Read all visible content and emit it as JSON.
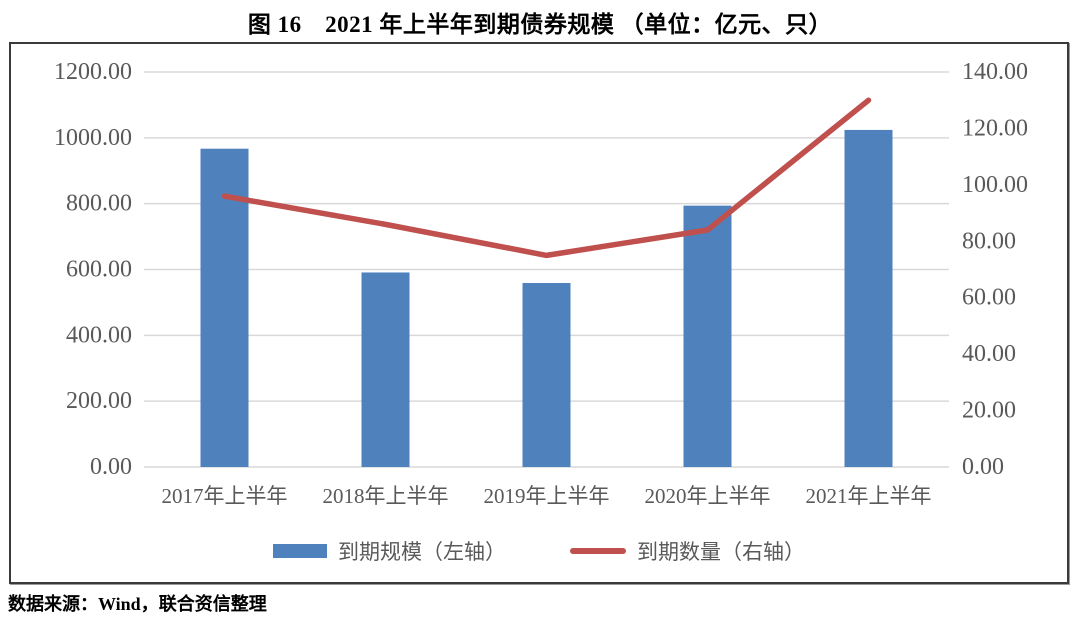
{
  "title": "图 16　2021 年上半年到期债券规模 （单位：亿元、只）",
  "source_note": "数据来源：Wind，联合资信整理",
  "colors": {
    "bar": "#4F81BD",
    "line": "#C0504D",
    "grid": "#D9D9D9",
    "axis_text": "#595959",
    "border": "#3A3A3A"
  },
  "legend": {
    "items": [
      {
        "label": "到期规模（左轴）",
        "swatch": "bar",
        "color": "#4F81BD"
      },
      {
        "label": "到期数量（右轴）",
        "swatch": "line",
        "color": "#C0504D"
      }
    ]
  },
  "chart_data": {
    "type": "combo",
    "categories": [
      "2017年上半年",
      "2018年上半年",
      "2019年上半年",
      "2020年上半年",
      "2021年上半年"
    ],
    "series": [
      {
        "name": "到期规模（左轴）",
        "type": "bar",
        "axis": "left",
        "values": [
          967,
          591,
          559,
          794,
          1024
        ]
      },
      {
        "name": "到期数量（右轴）",
        "type": "line",
        "axis": "right",
        "values": [
          96,
          86,
          75,
          84,
          130
        ]
      }
    ],
    "left_axis": {
      "min": 0,
      "max": 1200,
      "step": 200,
      "unit": "亿元",
      "tick_decimals": 2
    },
    "right_axis": {
      "min": 0,
      "max": 140,
      "step": 20,
      "unit": "只",
      "tick_decimals": 2
    },
    "grid": true,
    "legend_position": "bottom"
  }
}
